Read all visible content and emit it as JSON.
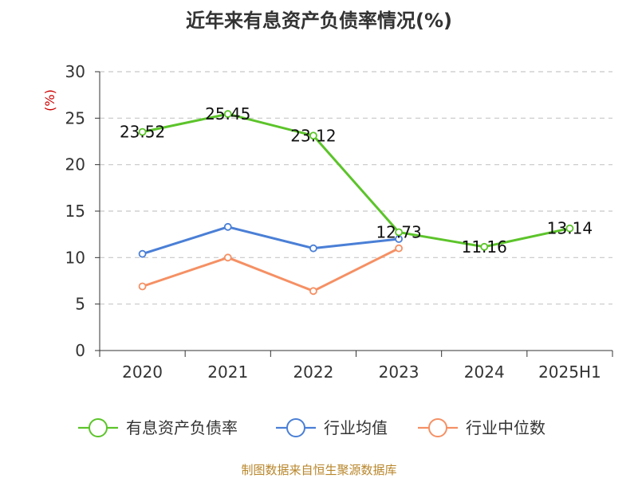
{
  "chart_data": {
    "type": "line",
    "title": "近年来有息资产负债率情况(%)",
    "ylabel": "(%)",
    "categories": [
      "2020",
      "2021",
      "2022",
      "2023",
      "2024",
      "2025H1"
    ],
    "ylim": [
      0,
      30
    ],
    "yticks": [
      "0",
      "5",
      "10",
      "15",
      "20",
      "25",
      "30"
    ],
    "grid": true,
    "legend_position": "bottom",
    "series": [
      {
        "name": "有息资产负债率",
        "color": "#5cc42a",
        "values": [
          23.52,
          25.45,
          23.12,
          12.73,
          11.16,
          13.14
        ],
        "labels": [
          "23.52",
          "25.45",
          "23.12",
          "12.73",
          "11.16",
          "13.14"
        ]
      },
      {
        "name": "行业均值",
        "color": "#4a7fd6",
        "values": [
          10.4,
          13.3,
          11.0,
          12.0,
          null,
          null
        ]
      },
      {
        "name": "行业中位数",
        "color": "#f59064",
        "values": [
          6.9,
          10.0,
          6.4,
          11.0,
          null,
          null
        ]
      }
    ]
  },
  "source": "制图数据来自恒生聚源数据库"
}
